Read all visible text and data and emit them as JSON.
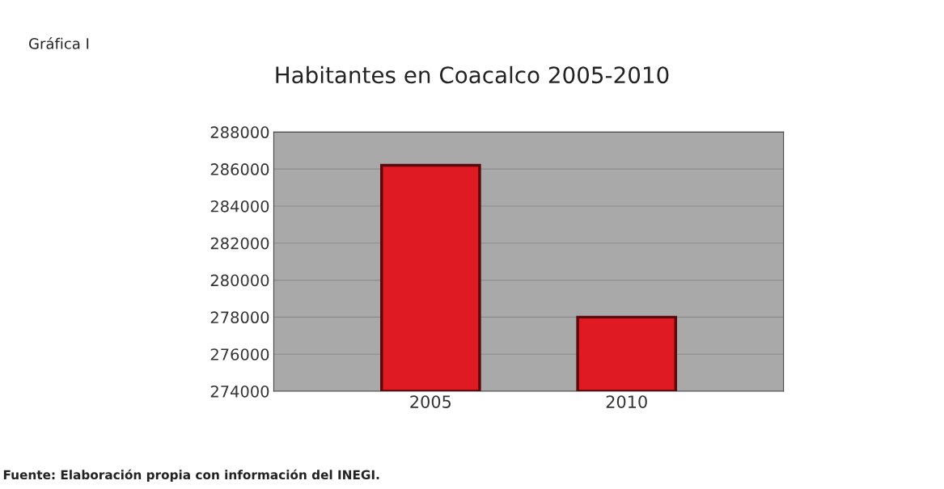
{
  "chart_data": {
    "type": "bar",
    "title": "Habitantes en Coacalco 2005-2010",
    "categories": [
      "2005",
      "2010"
    ],
    "values": [
      286200,
      278000
    ],
    "color": "#e01a22",
    "ylim": [
      274000,
      288000
    ],
    "yticks": [
      274000,
      276000,
      278000,
      280000,
      282000,
      284000,
      286000,
      288000
    ],
    "grid": "y",
    "annotations": [
      "Gráfica I",
      "Fuente: Elaboración propia con información del INEGI."
    ]
  }
}
